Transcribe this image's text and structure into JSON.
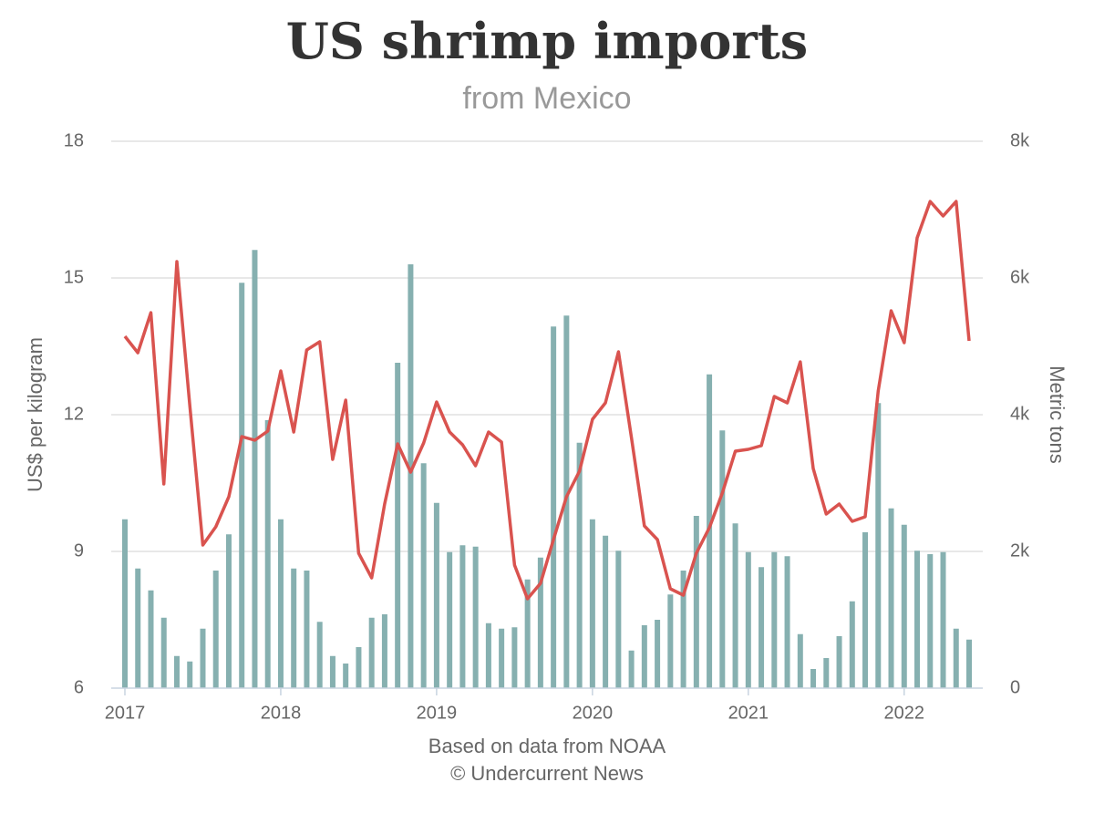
{
  "chart_data": {
    "type": "bar-line",
    "title": "US shrimp imports",
    "subtitle": "from Mexico",
    "y_label": "US$ per kilogram",
    "y2_label": "Metric tons",
    "footer": [
      "Based on data from NOAA",
      "© Undercurrent News"
    ],
    "categories": [
      "2017",
      null,
      null,
      null,
      null,
      null,
      null,
      null,
      null,
      null,
      null,
      null,
      "2018",
      null,
      null,
      null,
      null,
      null,
      null,
      null,
      null,
      null,
      null,
      null,
      "2019",
      null,
      null,
      null,
      null,
      null,
      null,
      null,
      null,
      null,
      null,
      null,
      "2020",
      null,
      null,
      null,
      null,
      null,
      null,
      null,
      null,
      null,
      null,
      null,
      "2021",
      null,
      null,
      null,
      null,
      null,
      null,
      null,
      null,
      null,
      null,
      null,
      "2022",
      null,
      null,
      null,
      null,
      null
    ],
    "ylim": [
      6,
      18
    ],
    "yticks": [
      6,
      9,
      12,
      15,
      18
    ],
    "y2lim": [
      0,
      8000
    ],
    "y2ticks": [
      0,
      {
        "value": 2000,
        "label": "2k"
      },
      {
        "value": 4000,
        "label": "4k"
      },
      {
        "value": 6000,
        "label": "6k"
      },
      {
        "value": 8000,
        "label": "8k"
      }
    ],
    "grid": true,
    "series": [
      {
        "type": "bar",
        "axis": "y2",
        "color": "#86b0b0",
        "values": [
          2470,
          1750,
          1430,
          1030,
          470,
          390,
          870,
          1720,
          2250,
          5930,
          6410,
          3920,
          2470,
          1750,
          1720,
          970,
          470,
          360,
          600,
          1030,
          1080,
          4760,
          6200,
          3290,
          2710,
          1990,
          2090,
          2070,
          950,
          870,
          890,
          1590,
          1910,
          5290,
          5450,
          3590,
          2470,
          2230,
          2010,
          550,
          920,
          1000,
          1370,
          1720,
          2520,
          4590,
          3770,
          2410,
          1990,
          1770,
          1990,
          1930,
          790,
          280,
          440,
          760,
          1270,
          2280,
          4170,
          2630,
          2390,
          2010,
          1960,
          1990,
          870,
          710
        ]
      },
      {
        "type": "line",
        "color": "#d9534f",
        "values": [
          13.72,
          13.36,
          14.24,
          10.48,
          15.36,
          12.2,
          9.14,
          9.54,
          10.2,
          11.52,
          11.44,
          11.64,
          12.96,
          11.62,
          13.42,
          13.6,
          11.02,
          12.32,
          8.96,
          8.42,
          10.04,
          11.36,
          10.74,
          11.38,
          12.28,
          11.62,
          11.34,
          10.88,
          11.62,
          11.4,
          8.7,
          7.96,
          8.3,
          9.26,
          10.2,
          10.76,
          11.9,
          12.26,
          13.38,
          11.5,
          9.56,
          9.26,
          8.18,
          8.04,
          8.96,
          9.52,
          10.28,
          11.2,
          11.24,
          11.32,
          12.4,
          12.26,
          13.16,
          10.82,
          9.82,
          10.04,
          9.66,
          9.76,
          12.52,
          14.28,
          13.58,
          15.88,
          16.68,
          16.36,
          16.68,
          13.62
        ]
      }
    ]
  }
}
